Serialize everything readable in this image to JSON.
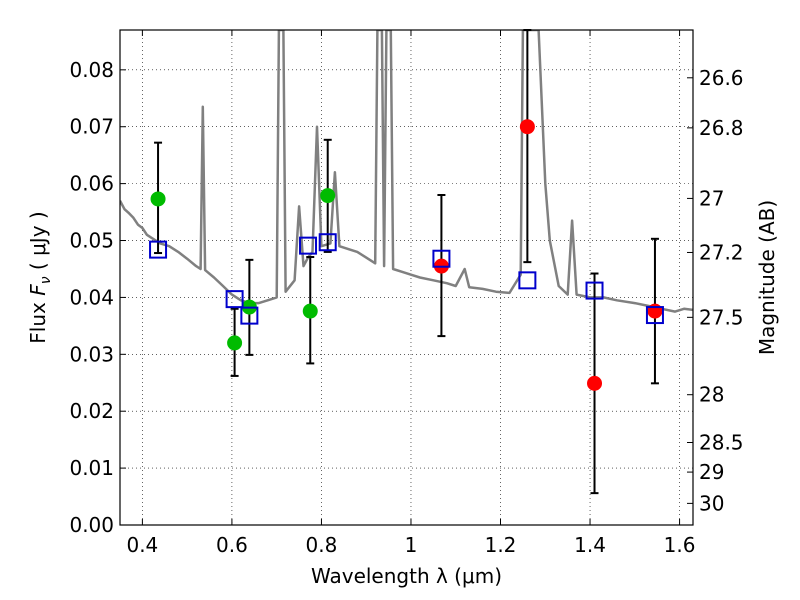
{
  "chart_data": {
    "type": "scatter",
    "xlabel": "Wavelength  λ (μm)",
    "ylabel": "Flux  F_ν  ( μJy )",
    "ylabel_right": "Magnitude (AB)",
    "xlim": [
      0.35,
      1.63
    ],
    "ylim": [
      0.0,
      0.087
    ],
    "grid": true,
    "x_ticks": [
      0.4,
      0.6,
      0.8,
      1.0,
      1.2,
      1.4,
      1.6
    ],
    "x_tick_labels": [
      "0.4",
      "0.6",
      "0.8",
      "1",
      "1.2",
      "1.4",
      "1.6"
    ],
    "y_ticks": [
      0.0,
      0.01,
      0.02,
      0.03,
      0.04,
      0.05,
      0.06,
      0.07,
      0.08
    ],
    "y_tick_labels": [
      "0.00",
      "0.01",
      "0.02",
      "0.03",
      "0.04",
      "0.05",
      "0.06",
      "0.07",
      "0.08"
    ],
    "right_ticks": [
      {
        "flux": 0.0786,
        "label": "26.6"
      },
      {
        "flux": 0.0698,
        "label": "26.8"
      },
      {
        "flux": 0.0574,
        "label": "27"
      },
      {
        "flux": 0.0479,
        "label": "27.2"
      },
      {
        "flux": 0.0365,
        "label": "27.5"
      },
      {
        "flux": 0.0229,
        "label": "28"
      },
      {
        "flux": 0.0145,
        "label": "28.5"
      },
      {
        "flux": 0.0093,
        "label": "29"
      },
      {
        "flux": 0.0038,
        "label": "30"
      }
    ],
    "series": [
      {
        "color": "#00bb00",
        "marker": "circle",
        "points": [
          {
            "x": 0.435,
            "y": 0.0573
          },
          {
            "x": 0.606,
            "y": 0.032
          },
          {
            "x": 0.639,
            "y": 0.0383
          },
          {
            "x": 0.775,
            "y": 0.0376
          },
          {
            "x": 0.814,
            "y": 0.0579
          }
        ]
      },
      {
        "color": "#ff0000",
        "marker": "circle",
        "points": [
          {
            "x": 1.068,
            "y": 0.0455
          },
          {
            "x": 1.26,
            "y": 0.07
          },
          {
            "x": 1.41,
            "y": 0.0249
          },
          {
            "x": 1.545,
            "y": 0.0376
          }
        ]
      },
      {
        "color": "#0000cc",
        "marker": "open-square",
        "points": [
          {
            "x": 0.435,
            "y": 0.0484
          },
          {
            "x": 0.606,
            "y": 0.0397
          },
          {
            "x": 0.639,
            "y": 0.0368
          },
          {
            "x": 0.77,
            "y": 0.0491
          },
          {
            "x": 0.814,
            "y": 0.0497
          },
          {
            "x": 1.068,
            "y": 0.0468
          },
          {
            "x": 1.26,
            "y": 0.043
          },
          {
            "x": 1.41,
            "y": 0.0412
          },
          {
            "x": 1.545,
            "y": 0.0369
          }
        ]
      }
    ],
    "error_bars": [
      {
        "x": 0.435,
        "low": 0.0478,
        "high": 0.0672
      },
      {
        "x": 0.606,
        "low": 0.0262,
        "high": 0.038
      },
      {
        "x": 0.639,
        "low": 0.0299,
        "high": 0.0466
      },
      {
        "x": 0.775,
        "low": 0.0284,
        "high": 0.0471
      },
      {
        "x": 0.814,
        "low": 0.048,
        "high": 0.0677
      },
      {
        "x": 1.068,
        "low": 0.0332,
        "high": 0.058
      },
      {
        "x": 1.26,
        "low": 0.0462,
        "high": 0.087
      },
      {
        "x": 1.41,
        "low": 0.0056,
        "high": 0.0442
      },
      {
        "x": 1.545,
        "low": 0.0249,
        "high": 0.0503
      }
    ],
    "spectrum": {
      "color": "#808080",
      "points": [
        [
          0.35,
          0.057
        ],
        [
          0.36,
          0.0555
        ],
        [
          0.37,
          0.0548
        ],
        [
          0.38,
          0.054
        ],
        [
          0.39,
          0.0528
        ],
        [
          0.4,
          0.0522
        ],
        [
          0.41,
          0.051
        ],
        [
          0.42,
          0.0505
        ],
        [
          0.43,
          0.05
        ],
        [
          0.44,
          0.0495
        ],
        [
          0.46,
          0.049
        ],
        [
          0.48,
          0.048
        ],
        [
          0.5,
          0.0468
        ],
        [
          0.52,
          0.0455
        ],
        [
          0.53,
          0.045
        ],
        [
          0.535,
          0.0735
        ],
        [
          0.54,
          0.0448
        ],
        [
          0.56,
          0.0435
        ],
        [
          0.58,
          0.042
        ],
        [
          0.6,
          0.0405
        ],
        [
          0.62,
          0.0395
        ],
        [
          0.64,
          0.039
        ],
        [
          0.66,
          0.039
        ],
        [
          0.68,
          0.0395
        ],
        [
          0.7,
          0.04
        ],
        [
          0.705,
          0.087
        ],
        [
          0.715,
          0.087
        ],
        [
          0.72,
          0.041
        ],
        [
          0.74,
          0.043
        ],
        [
          0.75,
          0.056
        ],
        [
          0.76,
          0.0455
        ],
        [
          0.77,
          0.047
        ],
        [
          0.78,
          0.048
        ],
        [
          0.79,
          0.07
        ],
        [
          0.8,
          0.049
        ],
        [
          0.82,
          0.0495
        ],
        [
          0.83,
          0.062
        ],
        [
          0.84,
          0.049
        ],
        [
          0.86,
          0.0485
        ],
        [
          0.88,
          0.048
        ],
        [
          0.9,
          0.047
        ],
        [
          0.92,
          0.046
        ],
        [
          0.925,
          0.087
        ],
        [
          0.935,
          0.087
        ],
        [
          0.94,
          0.0455
        ],
        [
          0.945,
          0.087
        ],
        [
          0.955,
          0.087
        ],
        [
          0.96,
          0.045
        ],
        [
          0.98,
          0.0445
        ],
        [
          1.0,
          0.044
        ],
        [
          1.02,
          0.0435
        ],
        [
          1.05,
          0.043
        ],
        [
          1.08,
          0.0425
        ],
        [
          1.1,
          0.042
        ],
        [
          1.12,
          0.045
        ],
        [
          1.13,
          0.0418
        ],
        [
          1.16,
          0.0415
        ],
        [
          1.19,
          0.041
        ],
        [
          1.22,
          0.0408
        ],
        [
          1.245,
          0.044
        ],
        [
          1.25,
          0.087
        ],
        [
          1.27,
          0.087
        ],
        [
          1.285,
          0.087
        ],
        [
          1.3,
          0.06
        ],
        [
          1.31,
          0.05
        ],
        [
          1.33,
          0.042
        ],
        [
          1.35,
          0.0405
        ],
        [
          1.36,
          0.0535
        ],
        [
          1.37,
          0.0405
        ],
        [
          1.4,
          0.04
        ],
        [
          1.43,
          0.04
        ],
        [
          1.46,
          0.0395
        ],
        [
          1.5,
          0.039
        ],
        [
          1.53,
          0.0385
        ],
        [
          1.56,
          0.038
        ],
        [
          1.59,
          0.0375
        ],
        [
          1.61,
          0.038
        ],
        [
          1.63,
          0.0378
        ]
      ]
    }
  }
}
